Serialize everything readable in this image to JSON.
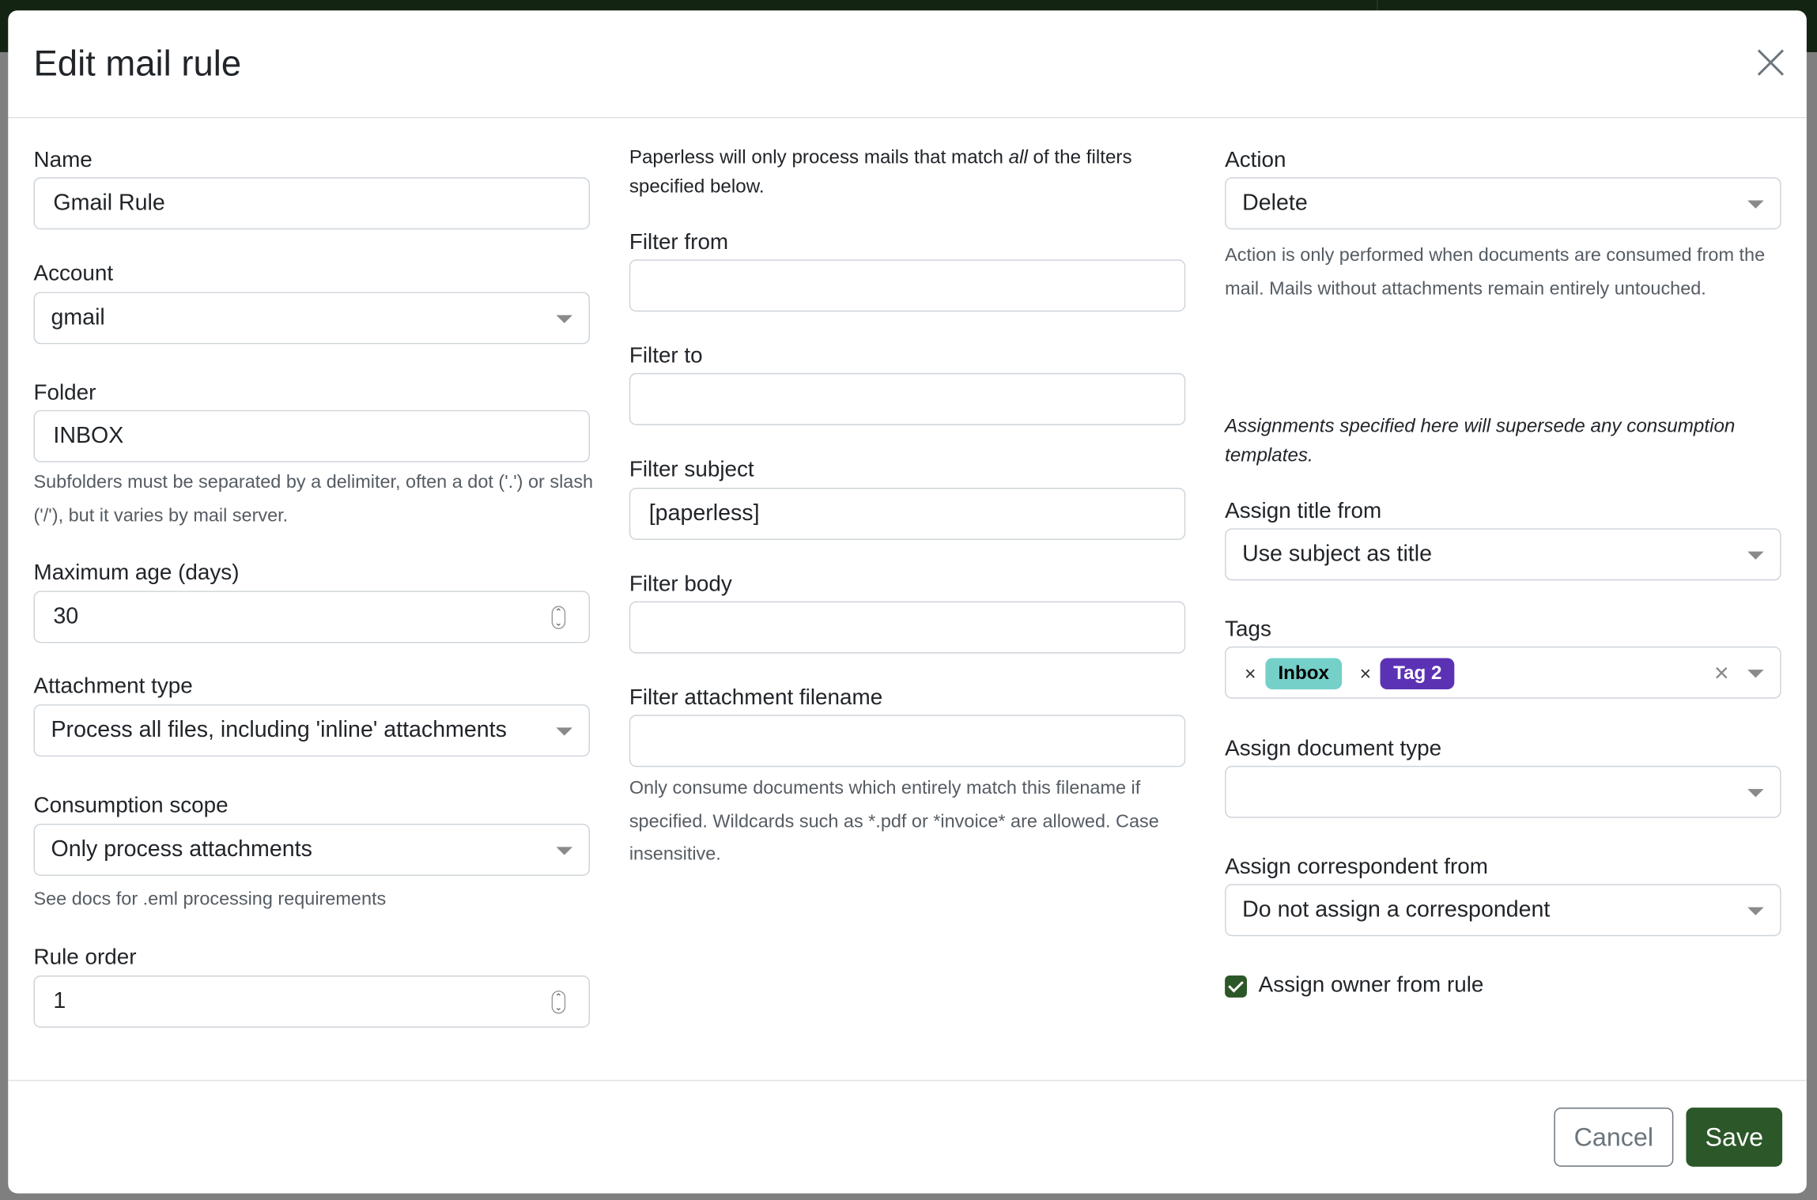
{
  "modal": {
    "title": "Edit mail rule",
    "close_icon": "close-icon",
    "left": {
      "name": {
        "label": "Name",
        "value": "Gmail Rule"
      },
      "account": {
        "label": "Account",
        "value": "gmail"
      },
      "folder": {
        "label": "Folder",
        "value": "INBOX",
        "help": "Subfolders must be separated by a delimiter, often a dot ('.') or slash ('/'), but it varies by mail server."
      },
      "max_age": {
        "label": "Maximum age (days)",
        "value": "30"
      },
      "attachment_type": {
        "label": "Attachment type",
        "value": "Process all files, including 'inline' attachments"
      },
      "consumption_scope": {
        "label": "Consumption scope",
        "value": "Only process attachments",
        "help": "See docs for .eml processing requirements"
      },
      "rule_order": {
        "label": "Rule order",
        "value": "1"
      }
    },
    "middle": {
      "intro_before": "Paperless will only process mails that match ",
      "intro_em": "all",
      "intro_after": " of the filters specified below.",
      "filter_from": {
        "label": "Filter from",
        "value": ""
      },
      "filter_to": {
        "label": "Filter to",
        "value": ""
      },
      "filter_subject": {
        "label": "Filter subject",
        "value": "[paperless]"
      },
      "filter_body": {
        "label": "Filter body",
        "value": ""
      },
      "filter_attachment": {
        "label": "Filter attachment filename",
        "value": "",
        "help": "Only consume documents which entirely match this filename if specified. Wildcards such as *.pdf or *invoice* are allowed. Case insensitive."
      }
    },
    "right": {
      "action": {
        "label": "Action",
        "value": "Delete",
        "help": "Action is only performed when documents are consumed from the mail. Mails without attachments remain entirely untouched."
      },
      "assign_note": "Assignments specified here will supersede any consumption templates.",
      "assign_title": {
        "label": "Assign title from",
        "value": "Use subject as title"
      },
      "tags": {
        "label": "Tags",
        "items": [
          {
            "label": "Inbox",
            "bg": "#74d0c8",
            "fg": "#000000"
          },
          {
            "label": "Tag 2",
            "bg": "#5b32b4",
            "fg": "#ffffff"
          }
        ],
        "remove_symbol": "×",
        "clear_symbol": "×"
      },
      "doc_type": {
        "label": "Assign document type",
        "value": ""
      },
      "correspondent": {
        "label": "Assign correspondent from",
        "value": "Do not assign a correspondent"
      },
      "owner": {
        "label": "Assign owner from rule",
        "checked": true
      }
    },
    "footer": {
      "cancel": "Cancel",
      "save": "Save"
    }
  },
  "colors": {
    "primary": "#2c5728",
    "topbar": "#142413",
    "overlay": "#7f7f7f"
  }
}
